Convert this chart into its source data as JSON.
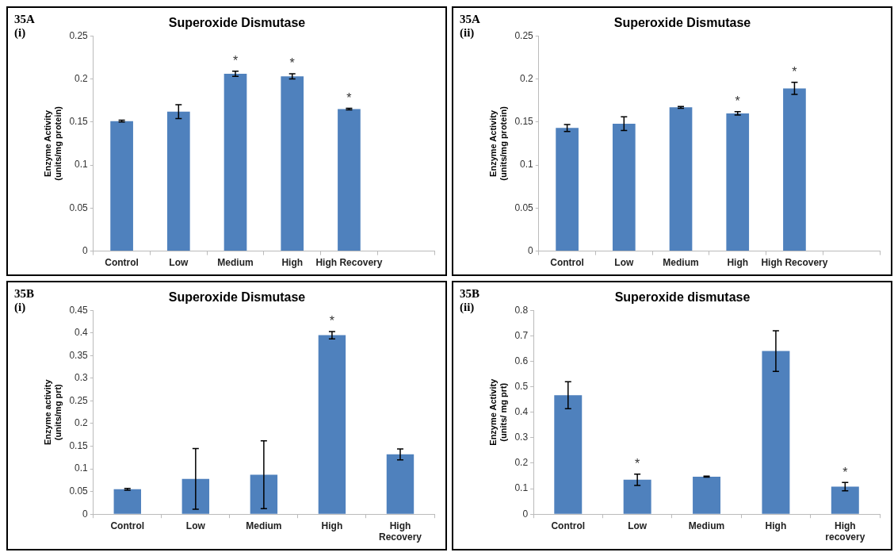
{
  "chart_data": [
    {
      "type": "bar",
      "title": "Superoxide Dismutase",
      "ylabel": "Enzyme Activity\n(units/mg protein)",
      "categories": [
        "Control",
        "Low",
        "Medium",
        "High",
        "High Recovery",
        null
      ],
      "values": [
        0.151,
        0.162,
        0.206,
        0.203,
        0.165,
        null
      ],
      "errors": [
        0.001,
        0.008,
        0.003,
        0.003,
        0.001,
        null
      ],
      "color": "#4f81bd",
      "ylim": [
        0,
        0.25
      ],
      "yticks": [
        0,
        0.05,
        0.1,
        0.15,
        0.2,
        0.25
      ],
      "grid": false,
      "legend": false,
      "annotations": [
        "35A\n(i)",
        {
          "text": "*",
          "x": "Medium",
          "y": 0.206
        },
        {
          "text": "*",
          "x": "High",
          "y": 0.203
        },
        {
          "text": "*",
          "x": "High Recovery",
          "y": 0.165
        }
      ]
    },
    {
      "type": "bar",
      "title": "Superoxide Dismutase",
      "ylabel": "Enzyme Activity\n(units/mg protein)",
      "categories": [
        "Control",
        "Low",
        "Medium",
        "High",
        "High Recovery",
        null
      ],
      "values": [
        0.143,
        0.148,
        0.167,
        0.16,
        0.189,
        null
      ],
      "errors": [
        0.004,
        0.008,
        0.001,
        0.002,
        0.007,
        null
      ],
      "color": "#4f81bd",
      "ylim": [
        0,
        0.25
      ],
      "yticks": [
        0,
        0.05,
        0.1,
        0.15,
        0.2,
        0.25
      ],
      "grid": false,
      "legend": false,
      "annotations": [
        "35A\n(ii)",
        {
          "text": "*",
          "x": "High",
          "y": 0.16
        },
        {
          "text": "*",
          "x": "High Recovery",
          "y": 0.189
        }
      ]
    },
    {
      "type": "bar",
      "title": "Superoxide Dismutase",
      "ylabel": "Enzyme activity\n(units/mg prt)",
      "categories": [
        "Control",
        "Low",
        "Medium",
        "High",
        "High\nRecovery"
      ],
      "values": [
        0.055,
        0.078,
        0.087,
        0.395,
        0.132
      ],
      "errors": [
        0.002,
        0.067,
        0.075,
        0.008,
        0.012
      ],
      "color": "#4f81bd",
      "ylim": [
        0,
        0.45
      ],
      "yticks": [
        0,
        0.05,
        0.1,
        0.15,
        0.2,
        0.25,
        0.3,
        0.35,
        0.4,
        0.45
      ],
      "grid": false,
      "legend": false,
      "annotations": [
        "35B\n(i)",
        {
          "text": "*",
          "x": "High",
          "y": 0.395
        }
      ]
    },
    {
      "type": "bar",
      "title": "Superoxide dismutase",
      "ylabel": "Enzyme Activity\n(units/ mg prt)",
      "categories": [
        "Control",
        "Low",
        "Medium",
        "High",
        "High\nrecovery"
      ],
      "values": [
        0.467,
        0.135,
        0.147,
        0.64,
        0.108
      ],
      "errors": [
        0.053,
        0.022,
        0.002,
        0.08,
        0.016
      ],
      "color": "#4f81bd",
      "ylim": [
        0,
        0.8
      ],
      "yticks": [
        0,
        0.1,
        0.2,
        0.3,
        0.4,
        0.5,
        0.6,
        0.7,
        0.8
      ],
      "grid": false,
      "legend": false,
      "annotations": [
        "35B\n(ii)",
        {
          "text": "*",
          "x": "Low",
          "y": 0.135
        },
        {
          "text": "*",
          "x": "High\nrecovery",
          "y": 0.108
        }
      ]
    }
  ]
}
